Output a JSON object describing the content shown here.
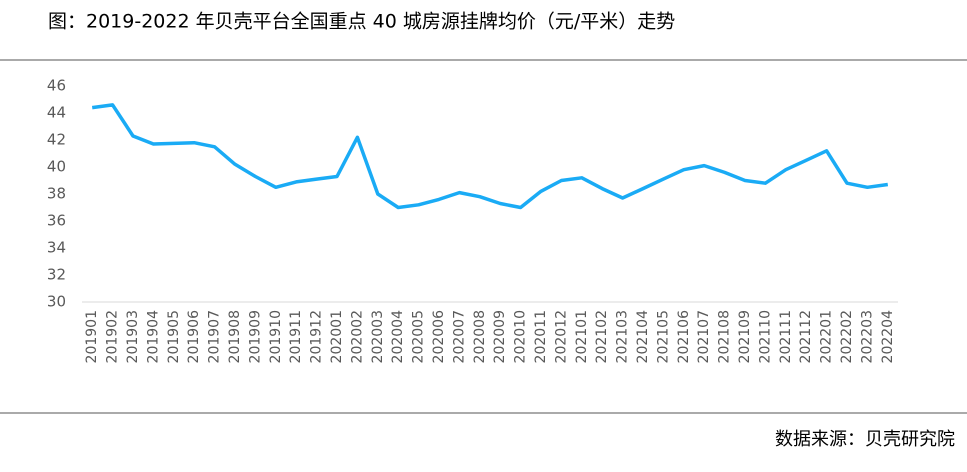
{
  "chart_data": {
    "type": "line",
    "title": "图：2019-2022 年贝壳平台全国重点 40 城房源挂牌均价（元/平米）走势",
    "source": "数据来源：贝壳研究院",
    "categories": [
      "201901",
      "201902",
      "201903",
      "201904",
      "201905",
      "201906",
      "201907",
      "201908",
      "201909",
      "201910",
      "201911",
      "201912",
      "202001",
      "202002",
      "202003",
      "202004",
      "202005",
      "202006",
      "202007",
      "202008",
      "202009",
      "202010",
      "202011",
      "202012",
      "202101",
      "202102",
      "202103",
      "202104",
      "202105",
      "202106",
      "202107",
      "202108",
      "202109",
      "202110",
      "202111",
      "202112",
      "202201",
      "202202",
      "202203",
      "202204"
    ],
    "values": [
      44.4,
      44.6,
      42.3,
      41.7,
      41.75,
      41.8,
      41.5,
      40.2,
      39.3,
      38.5,
      38.9,
      39.1,
      39.3,
      42.2,
      38.0,
      37.0,
      37.2,
      37.6,
      38.1,
      37.8,
      37.3,
      37.0,
      38.2,
      39.0,
      39.2,
      38.4,
      37.7,
      38.4,
      39.1,
      39.8,
      40.1,
      39.6,
      39.0,
      38.8,
      39.8,
      40.5,
      41.2,
      38.8,
      38.5,
      38.7
    ],
    "color": "#1aabf5",
    "ylim": [
      30,
      46
    ],
    "yticks": [
      30,
      32,
      34,
      36,
      38,
      40,
      42,
      44,
      46
    ]
  }
}
